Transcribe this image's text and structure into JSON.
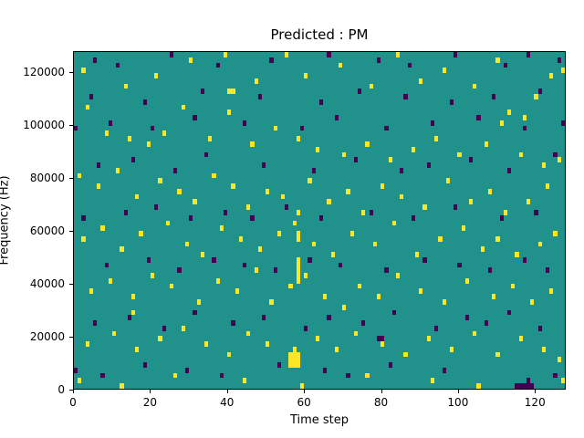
{
  "chart_data": {
    "type": "heatmap",
    "title": "Predicted : PM",
    "xlabel": "Time step",
    "ylabel": "Frequency (Hz)",
    "xlim": [
      0,
      128
    ],
    "ylim": [
      0,
      128000
    ],
    "xtick_values": [
      0,
      20,
      40,
      60,
      80,
      100,
      120
    ],
    "xtick_labels": [
      "0",
      "20",
      "40",
      "60",
      "80",
      "100",
      "120"
    ],
    "ytick_values": [
      0,
      20000,
      40000,
      60000,
      80000,
      100000,
      120000
    ],
    "ytick_labels": [
      "0",
      "20000",
      "40000",
      "60000",
      "80000",
      "100000",
      "120000"
    ],
    "grid": [
      128,
      64
    ],
    "hz_per_row": 2000,
    "legend": "none",
    "grid_lines": false,
    "colors": {
      "background_mid": "#21918c",
      "high": "#fde725",
      "low": "#440154",
      "figure_background": "#ffffff",
      "text": "#000000"
    },
    "high_cells": [
      [
        2,
        60
      ],
      [
        13,
        57
      ],
      [
        21,
        59
      ],
      [
        30,
        62
      ],
      [
        39,
        63
      ],
      [
        40,
        56
      ],
      [
        41,
        56
      ],
      [
        47,
        58
      ],
      [
        55,
        63
      ],
      [
        60,
        59
      ],
      [
        69,
        61
      ],
      [
        77,
        57
      ],
      [
        84,
        63
      ],
      [
        90,
        58
      ],
      [
        96,
        60
      ],
      [
        104,
        57
      ],
      [
        110,
        62
      ],
      [
        113,
        52
      ],
      [
        117,
        51
      ],
      [
        120,
        55
      ],
      [
        124,
        59
      ],
      [
        127,
        60
      ],
      [
        3,
        53
      ],
      [
        8,
        48
      ],
      [
        14,
        47
      ],
      [
        19,
        46
      ],
      [
        23,
        48
      ],
      [
        28,
        53
      ],
      [
        35,
        47
      ],
      [
        40,
        52
      ],
      [
        46,
        46
      ],
      [
        52,
        49
      ],
      [
        58,
        47
      ],
      [
        63,
        45
      ],
      [
        70,
        44
      ],
      [
        76,
        46
      ],
      [
        82,
        43
      ],
      [
        88,
        45
      ],
      [
        94,
        47
      ],
      [
        100,
        44
      ],
      [
        107,
        46
      ],
      [
        111,
        50
      ],
      [
        116,
        44
      ],
      [
        122,
        42
      ],
      [
        126,
        43
      ],
      [
        1,
        40
      ],
      [
        6,
        38
      ],
      [
        11,
        41
      ],
      [
        16,
        36
      ],
      [
        22,
        39
      ],
      [
        27,
        37
      ],
      [
        31,
        35
      ],
      [
        36,
        40
      ],
      [
        41,
        38
      ],
      [
        45,
        34
      ],
      [
        50,
        37
      ],
      [
        54,
        36
      ],
      [
        58,
        33
      ],
      [
        61,
        39
      ],
      [
        66,
        35
      ],
      [
        71,
        37
      ],
      [
        75,
        33
      ],
      [
        80,
        38
      ],
      [
        85,
        36
      ],
      [
        91,
        34
      ],
      [
        97,
        39
      ],
      [
        103,
        35
      ],
      [
        108,
        37
      ],
      [
        112,
        33
      ],
      [
        118,
        35
      ],
      [
        123,
        38
      ],
      [
        2,
        28
      ],
      [
        7,
        30
      ],
      [
        12,
        26
      ],
      [
        17,
        29
      ],
      [
        24,
        31
      ],
      [
        29,
        27
      ],
      [
        33,
        25
      ],
      [
        38,
        30
      ],
      [
        43,
        28
      ],
      [
        48,
        26
      ],
      [
        53,
        29
      ],
      [
        57,
        31
      ],
      [
        58,
        28
      ],
      [
        58,
        29
      ],
      [
        62,
        27
      ],
      [
        67,
        25
      ],
      [
        72,
        29
      ],
      [
        78,
        27
      ],
      [
        83,
        31
      ],
      [
        89,
        25
      ],
      [
        95,
        28
      ],
      [
        101,
        30
      ],
      [
        106,
        26
      ],
      [
        110,
        28
      ],
      [
        115,
        25
      ],
      [
        121,
        27
      ],
      [
        125,
        29
      ],
      [
        4,
        18
      ],
      [
        9,
        20
      ],
      [
        15,
        17
      ],
      [
        20,
        21
      ],
      [
        25,
        19
      ],
      [
        32,
        16
      ],
      [
        37,
        20
      ],
      [
        42,
        18
      ],
      [
        47,
        22
      ],
      [
        51,
        16
      ],
      [
        56,
        19
      ],
      [
        58,
        20
      ],
      [
        58,
        21
      ],
      [
        58,
        22
      ],
      [
        58,
        23
      ],
      [
        58,
        24
      ],
      [
        60,
        21
      ],
      [
        65,
        17
      ],
      [
        70,
        15
      ],
      [
        74,
        19
      ],
      [
        79,
        17
      ],
      [
        84,
        21
      ],
      [
        90,
        18
      ],
      [
        96,
        16
      ],
      [
        102,
        20
      ],
      [
        109,
        17
      ],
      [
        114,
        19
      ],
      [
        119,
        16
      ],
      [
        124,
        18
      ],
      [
        3,
        8
      ],
      [
        10,
        10
      ],
      [
        15,
        14
      ],
      [
        16,
        7
      ],
      [
        22,
        9
      ],
      [
        28,
        11
      ],
      [
        34,
        8
      ],
      [
        40,
        6
      ],
      [
        45,
        10
      ],
      [
        50,
        8
      ],
      [
        56,
        4
      ],
      [
        57,
        4
      ],
      [
        58,
        4
      ],
      [
        56,
        5
      ],
      [
        57,
        5
      ],
      [
        58,
        5
      ],
      [
        56,
        6
      ],
      [
        57,
        6
      ],
      [
        58,
        6
      ],
      [
        57,
        7
      ],
      [
        63,
        9
      ],
      [
        68,
        7
      ],
      [
        73,
        10
      ],
      [
        80,
        8
      ],
      [
        86,
        6
      ],
      [
        92,
        9
      ],
      [
        98,
        7
      ],
      [
        104,
        10
      ],
      [
        110,
        6
      ],
      [
        116,
        9
      ],
      [
        122,
        7
      ],
      [
        126,
        5
      ],
      [
        1,
        1
      ],
      [
        12,
        0
      ],
      [
        26,
        2
      ],
      [
        44,
        1
      ],
      [
        59,
        0
      ],
      [
        76,
        2
      ],
      [
        93,
        1
      ],
      [
        105,
        0
      ],
      [
        127,
        1
      ]
    ],
    "low_cells": [
      [
        5,
        62
      ],
      [
        11,
        61
      ],
      [
        25,
        63
      ],
      [
        37,
        61
      ],
      [
        51,
        62
      ],
      [
        66,
        63
      ],
      [
        79,
        62
      ],
      [
        87,
        61
      ],
      [
        99,
        63
      ],
      [
        112,
        61
      ],
      [
        118,
        63
      ],
      [
        126,
        62
      ],
      [
        4,
        55
      ],
      [
        18,
        54
      ],
      [
        33,
        56
      ],
      [
        48,
        55
      ],
      [
        64,
        54
      ],
      [
        74,
        56
      ],
      [
        86,
        55
      ],
      [
        98,
        54
      ],
      [
        109,
        55
      ],
      [
        121,
        56
      ],
      [
        0,
        49
      ],
      [
        9,
        50
      ],
      [
        20,
        49
      ],
      [
        31,
        51
      ],
      [
        44,
        50
      ],
      [
        59,
        49
      ],
      [
        68,
        51
      ],
      [
        81,
        49
      ],
      [
        93,
        50
      ],
      [
        105,
        51
      ],
      [
        117,
        49
      ],
      [
        127,
        50
      ],
      [
        6,
        42
      ],
      [
        15,
        43
      ],
      [
        26,
        41
      ],
      [
        34,
        44
      ],
      [
        49,
        42
      ],
      [
        62,
        41
      ],
      [
        73,
        43
      ],
      [
        85,
        41
      ],
      [
        92,
        42
      ],
      [
        103,
        43
      ],
      [
        113,
        41
      ],
      [
        125,
        44
      ],
      [
        2,
        32
      ],
      [
        13,
        33
      ],
      [
        21,
        34
      ],
      [
        30,
        32
      ],
      [
        39,
        33
      ],
      [
        46,
        32
      ],
      [
        55,
        34
      ],
      [
        64,
        32
      ],
      [
        77,
        33
      ],
      [
        88,
        32
      ],
      [
        99,
        34
      ],
      [
        111,
        32
      ],
      [
        120,
        33
      ],
      [
        8,
        23
      ],
      [
        19,
        24
      ],
      [
        27,
        22
      ],
      [
        36,
        24
      ],
      [
        44,
        23
      ],
      [
        52,
        22
      ],
      [
        61,
        24
      ],
      [
        69,
        23
      ],
      [
        81,
        22
      ],
      [
        91,
        24
      ],
      [
        100,
        23
      ],
      [
        108,
        22
      ],
      [
        117,
        24
      ],
      [
        123,
        22
      ],
      [
        5,
        12
      ],
      [
        14,
        13
      ],
      [
        23,
        11
      ],
      [
        31,
        14
      ],
      [
        41,
        12
      ],
      [
        49,
        13
      ],
      [
        60,
        11
      ],
      [
        66,
        13
      ],
      [
        75,
        12
      ],
      [
        79,
        9
      ],
      [
        80,
        9
      ],
      [
        83,
        14
      ],
      [
        94,
        11
      ],
      [
        102,
        13
      ],
      [
        107,
        12
      ],
      [
        113,
        14
      ],
      [
        121,
        11
      ],
      [
        0,
        3
      ],
      [
        7,
        2
      ],
      [
        18,
        4
      ],
      [
        29,
        3
      ],
      [
        38,
        2
      ],
      [
        53,
        4
      ],
      [
        65,
        3
      ],
      [
        71,
        2
      ],
      [
        82,
        4
      ],
      [
        96,
        3
      ],
      [
        115,
        0
      ],
      [
        116,
        0
      ],
      [
        117,
        0
      ],
      [
        118,
        0
      ],
      [
        118,
        1
      ],
      [
        119,
        0
      ],
      [
        125,
        2
      ]
    ]
  }
}
